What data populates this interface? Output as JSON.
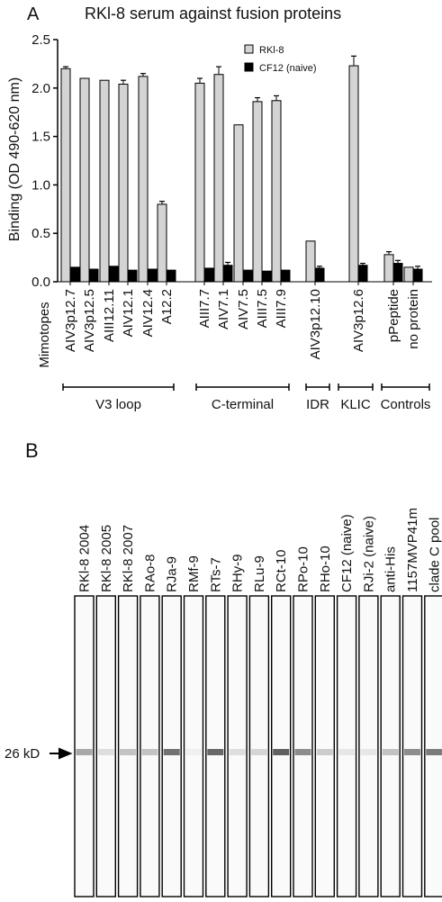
{
  "panel_a": {
    "label": "A",
    "mimotopes_label": "Mimotopes",
    "groups": [
      "V3 loop",
      "C-terminal",
      "IDR",
      "KLIC",
      "Controls"
    ]
  },
  "panel_b": {
    "label": "B",
    "marker_label": "26 kD",
    "lanes": [
      {
        "label": "RKl-8 2004",
        "band": 0.45
      },
      {
        "label": "RKl-8 2005",
        "band": 0.15
      },
      {
        "label": "RKl-8 2007",
        "band": 0.3
      },
      {
        "label": "RAo-8",
        "band": 0.3
      },
      {
        "label": "RJa-9",
        "band": 0.75
      },
      {
        "label": "RMf-9",
        "band": 0.05
      },
      {
        "label": "RTs-7",
        "band": 0.8
      },
      {
        "label": "RHy-9",
        "band": 0.15
      },
      {
        "label": "RLu-9",
        "band": 0.2
      },
      {
        "label": "RCt-10",
        "band": 0.85
      },
      {
        "label": "RPo-10",
        "band": 0.6
      },
      {
        "label": "RHo-10",
        "band": 0.25
      },
      {
        "label": "CF12 (naive)",
        "band": 0.1
      },
      {
        "label": "RJi-2 (naive)",
        "band": 0.1
      },
      {
        "label": "anti-His",
        "band": 0.3
      },
      {
        "label": "1157MVP41m",
        "band": 0.6
      },
      {
        "label": "clade C pool",
        "band": 0.7
      }
    ]
  },
  "chart_data": {
    "type": "bar",
    "title": "RKl-8 serum against fusion proteins",
    "xlabel": "",
    "ylabel": "Binding (OD 490-620 nm)",
    "ylim": [
      0,
      2.5
    ],
    "yticks": [
      0.0,
      0.5,
      1.0,
      1.5,
      2.0,
      2.5
    ],
    "ytick_labels": [
      "0.0",
      "0.5",
      "1.0",
      "1.5",
      "2.0",
      "2.5"
    ],
    "legend_position": "top-right",
    "categories": [
      "AIV3p12.7",
      "AIV3p12.5",
      "AIII12.11",
      "AIV12.1",
      "AIV12.4",
      "A12.2",
      "AIII7.7",
      "AIV7.1",
      "AIV7.5",
      "AIII7.5",
      "AIII7.9",
      "AIV3p12.10",
      "AIV3p12.6",
      "pPeptide",
      "no protein"
    ],
    "series": [
      {
        "name": "RKl-8",
        "color": "#d4d4d4",
        "values": [
          2.2,
          2.1,
          2.08,
          2.04,
          2.12,
          0.8,
          2.05,
          2.14,
          1.62,
          1.86,
          1.87,
          0.42,
          2.23,
          0.28,
          0.15
        ],
        "errors": [
          0.02,
          0.0,
          0.0,
          0.04,
          0.03,
          0.03,
          0.05,
          0.08,
          0.0,
          0.04,
          0.05,
          0.0,
          0.1,
          0.03,
          0.0
        ]
      },
      {
        "name": "CF12 (naive)",
        "color": "#000000",
        "values": [
          0.15,
          0.13,
          0.16,
          0.12,
          0.13,
          0.12,
          0.14,
          0.17,
          0.12,
          0.11,
          0.12,
          0.14,
          0.17,
          0.19,
          0.13
        ],
        "errors": [
          0.0,
          0.0,
          0.0,
          0.0,
          0.0,
          0.0,
          0.0,
          0.03,
          0.0,
          0.0,
          0.0,
          0.02,
          0.02,
          0.03,
          0.03
        ]
      }
    ],
    "groups": [
      {
        "name": "V3 loop",
        "indices": [
          0,
          1,
          2,
          3,
          4,
          5
        ]
      },
      {
        "name": "C-terminal",
        "indices": [
          6,
          7,
          8,
          9,
          10
        ]
      },
      {
        "name": "IDR",
        "indices": [
          11
        ]
      },
      {
        "name": "KLIC",
        "indices": [
          12
        ]
      },
      {
        "name": "Controls",
        "indices": [
          13,
          14
        ]
      }
    ]
  }
}
